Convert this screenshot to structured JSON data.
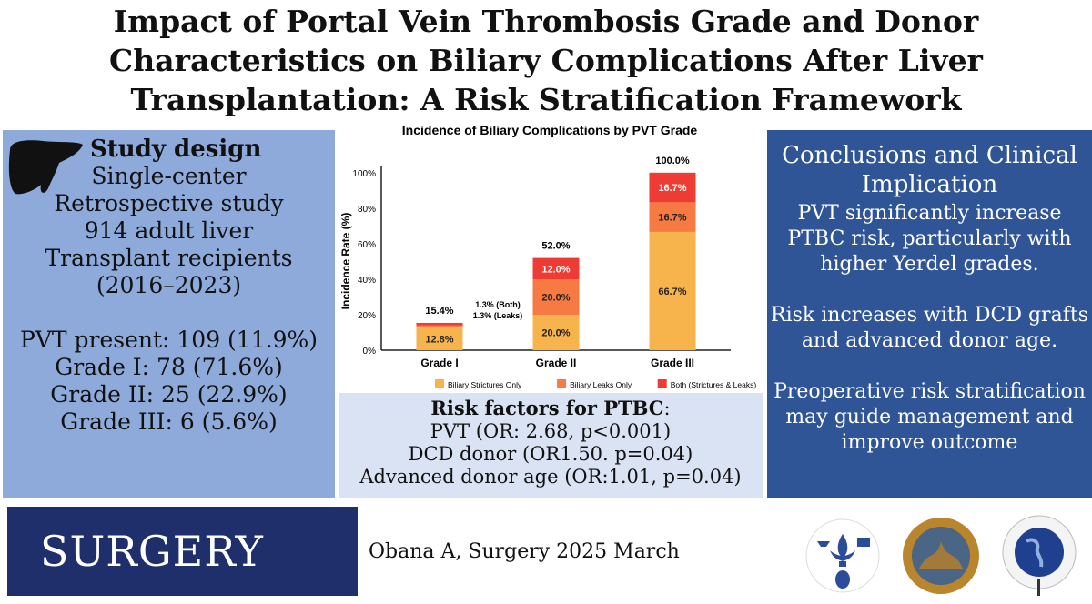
{
  "title": "Impact of Portal Vein Thrombosis Grade and Donor Characteristics on Biliary Complications After Liver Transplantation: A Risk Stratification Framework",
  "study_design": {
    "heading": "Study design",
    "lines": [
      "Single-center",
      "Retrospective study",
      "914 adult liver",
      "Transplant recipients",
      "(2016–2023)"
    ],
    "stats": [
      "PVT present: 109 (11.9%)",
      "Grade I: 78 (71.6%)",
      "Grade II: 25 (22.9%)",
      "Grade III: 6 (5.6%)"
    ],
    "icon": "liver-icon"
  },
  "risk_factors": {
    "heading": "Risk factors for PTBC",
    "colon": ":",
    "lines": [
      "PVT (OR: 2.68, p<0.001)",
      "DCD donor (OR1.50. p=0.04)",
      "Advanced donor age (OR:1.01, p=0.04)"
    ]
  },
  "conclusions": {
    "heading": "Conclusions and Clinical Implication",
    "paragraphs": [
      "PVT significantly increase PTBC risk, particularly with higher Yerdel grades.",
      "Risk increases with DCD grafts and advanced donor age.",
      "Preoperative risk stratification may guide management and improve outcome"
    ]
  },
  "journal": "SURGERY",
  "citation": "Obana A, Surgery 2025 March",
  "logos": [
    "SOCIETY OF UNIVERSITY SURGEONS",
    "THE CENTRAL SURGICAL ASSOCIATION",
    "AMERICAN ASSOCIATION OF ENDOCRINE SURGEONS"
  ],
  "chart_data": {
    "type": "bar",
    "stacked": true,
    "title": "Incidence of Biliary Complications by PVT Grade",
    "xlabel": "",
    "ylabel": "Incidence Rate (%)",
    "ylim": [
      0,
      100
    ],
    "yticks": [
      "0%",
      "20%",
      "40%",
      "60%",
      "80%",
      "100%"
    ],
    "categories": [
      "Grade I",
      "Grade II",
      "Grade III"
    ],
    "series": [
      {
        "name": "Biliary Strictures Only",
        "color": "#f8b44c",
        "values": [
          12.8,
          20.0,
          66.7
        ],
        "labels": [
          "12.8%",
          "20.0%",
          "66.7%"
        ]
      },
      {
        "name": "Biliary Leaks Only",
        "color": "#f77a42",
        "values": [
          1.3,
          20.0,
          16.7
        ],
        "labels": [
          "",
          "20.0%",
          "16.7%"
        ]
      },
      {
        "name": "Both (Strictures & Leaks)",
        "color": "#ee3b34",
        "values": [
          1.3,
          12.0,
          16.7
        ],
        "labels": [
          "",
          "12.0%",
          "16.7%"
        ]
      }
    ],
    "totals": [
      "15.4%",
      "52.0%",
      "100.0%"
    ],
    "annotations": [
      "1.3% (Both)",
      "1.3% (Leaks)"
    ],
    "grid": false,
    "legend": "bottom"
  }
}
